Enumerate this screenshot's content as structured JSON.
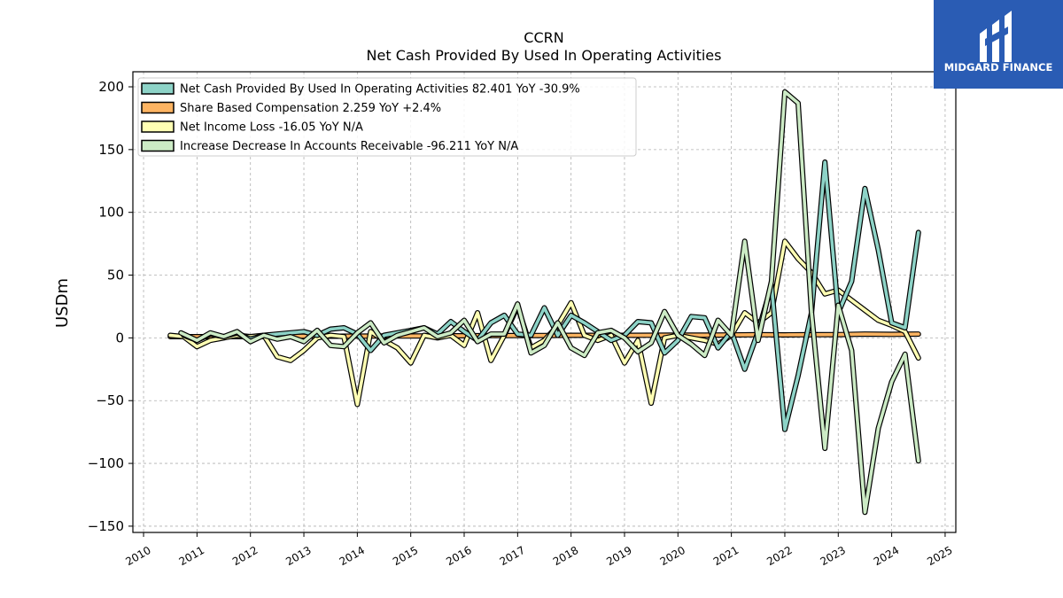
{
  "brand": {
    "name": "MIDGARD FINANCE",
    "bg_color": "#2a5cb4",
    "icon": "midgard-logo-icon"
  },
  "chart_data": {
    "type": "line",
    "title": "CCRN",
    "subtitle": "Net Cash Provided By Used In Operating Activities",
    "ylabel": "USDm",
    "xlabel": "",
    "xlim": [
      2009.8,
      2025.2
    ],
    "ylim": [
      -155,
      212
    ],
    "x_ticks": [
      2010,
      2011,
      2012,
      2013,
      2014,
      2015,
      2016,
      2017,
      2018,
      2019,
      2020,
      2021,
      2022,
      2023,
      2024,
      2025
    ],
    "y_ticks": [
      -150,
      -100,
      -50,
      0,
      50,
      100,
      150,
      200
    ],
    "y_tick_labels": [
      "−150",
      "−100",
      "−50",
      "0",
      "50",
      "100",
      "150",
      "200"
    ],
    "grid": true,
    "legend_position": "top-left",
    "series": [
      {
        "name": "Net Cash Provided By Used In Operating Activities",
        "legend": "Net Cash Provided By Used In Operating Activities  82.401 YoY -30.9%",
        "color": "#8dd3c7",
        "points": [
          [
            2010.75,
            2
          ],
          [
            2011.0,
            -2
          ],
          [
            2011.25,
            3
          ],
          [
            2011.5,
            1
          ],
          [
            2011.75,
            4
          ],
          [
            2012.0,
            -1
          ],
          [
            2012.25,
            2
          ],
          [
            2012.5,
            3
          ],
          [
            2012.75,
            4
          ],
          [
            2013.0,
            5
          ],
          [
            2013.25,
            2
          ],
          [
            2013.5,
            7
          ],
          [
            2013.75,
            8
          ],
          [
            2014.0,
            3
          ],
          [
            2014.25,
            -10
          ],
          [
            2014.5,
            2
          ],
          [
            2014.75,
            4
          ],
          [
            2015.0,
            6
          ],
          [
            2015.25,
            8
          ],
          [
            2015.5,
            3
          ],
          [
            2015.75,
            13
          ],
          [
            2016.0,
            5
          ],
          [
            2016.25,
            -2
          ],
          [
            2016.5,
            12
          ],
          [
            2016.75,
            18
          ],
          [
            2017.0,
            3
          ],
          [
            2017.25,
            2
          ],
          [
            2017.5,
            24
          ],
          [
            2017.75,
            2
          ],
          [
            2018.0,
            18
          ],
          [
            2018.25,
            12
          ],
          [
            2018.5,
            5
          ],
          [
            2018.75,
            -2
          ],
          [
            2019.0,
            2
          ],
          [
            2019.25,
            13
          ],
          [
            2019.5,
            12
          ],
          [
            2019.75,
            -12
          ],
          [
            2020.0,
            -2
          ],
          [
            2020.25,
            17
          ],
          [
            2020.5,
            16
          ],
          [
            2020.75,
            -8
          ],
          [
            2021.0,
            5
          ],
          [
            2021.25,
            -25
          ],
          [
            2021.5,
            5
          ],
          [
            2021.75,
            42
          ],
          [
            2022.0,
            -73
          ],
          [
            2022.25,
            -30
          ],
          [
            2022.5,
            20
          ],
          [
            2022.75,
            140
          ],
          [
            2023.0,
            20
          ],
          [
            2023.25,
            45
          ],
          [
            2023.5,
            119
          ],
          [
            2023.75,
            70
          ],
          [
            2024.0,
            12
          ],
          [
            2024.25,
            8
          ],
          [
            2024.5,
            84
          ]
        ]
      },
      {
        "name": "Share Based Compensation",
        "legend": "Share Based Compensation  2.259 YoY +2.4%",
        "color": "#fdb462",
        "points": [
          [
            2010.5,
            1
          ],
          [
            2011.0,
            1
          ],
          [
            2011.5,
            1
          ],
          [
            2012.0,
            1
          ],
          [
            2012.5,
            1.2
          ],
          [
            2013.0,
            1.3
          ],
          [
            2013.5,
            1.3
          ],
          [
            2014.0,
            1.4
          ],
          [
            2014.5,
            1.5
          ],
          [
            2015.0,
            1.5
          ],
          [
            2015.5,
            1.6
          ],
          [
            2016.0,
            1.7
          ],
          [
            2016.5,
            1.8
          ],
          [
            2017.0,
            1.8
          ],
          [
            2017.5,
            1.9
          ],
          [
            2018.0,
            2
          ],
          [
            2018.5,
            2
          ],
          [
            2019.0,
            2
          ],
          [
            2019.5,
            2.1
          ],
          [
            2020.0,
            2.2
          ],
          [
            2020.5,
            2.2
          ],
          [
            2021.0,
            2.3
          ],
          [
            2021.5,
            2.5
          ],
          [
            2022.0,
            2.4
          ],
          [
            2022.5,
            2.5
          ],
          [
            2023.0,
            2.6
          ],
          [
            2023.5,
            3
          ],
          [
            2024.0,
            2.8
          ],
          [
            2024.5,
            3
          ]
        ]
      },
      {
        "name": "Net Income Loss",
        "legend": "Net Income Loss  -16.05 YoY N/A",
        "color": "#ffffb3",
        "points": [
          [
            2010.5,
            2
          ],
          [
            2010.75,
            1
          ],
          [
            2011.0,
            -7
          ],
          [
            2011.25,
            -2
          ],
          [
            2011.5,
            0
          ],
          [
            2011.75,
            2
          ],
          [
            2012.0,
            1
          ],
          [
            2012.25,
            2
          ],
          [
            2012.5,
            -15
          ],
          [
            2012.75,
            -18
          ],
          [
            2013.0,
            -10
          ],
          [
            2013.25,
            0
          ],
          [
            2013.5,
            2
          ],
          [
            2013.75,
            1
          ],
          [
            2014.0,
            -53
          ],
          [
            2014.25,
            5
          ],
          [
            2014.5,
            -2
          ],
          [
            2014.75,
            -8
          ],
          [
            2015.0,
            -20
          ],
          [
            2015.25,
            2
          ],
          [
            2015.5,
            0
          ],
          [
            2015.75,
            2
          ],
          [
            2016.0,
            -6
          ],
          [
            2016.25,
            20
          ],
          [
            2016.5,
            -18
          ],
          [
            2016.75,
            2
          ],
          [
            2017.0,
            25
          ],
          [
            2017.25,
            -8
          ],
          [
            2017.5,
            -2
          ],
          [
            2017.75,
            10
          ],
          [
            2018.0,
            28
          ],
          [
            2018.25,
            2
          ],
          [
            2018.5,
            -2
          ],
          [
            2018.75,
            2
          ],
          [
            2019.0,
            -20
          ],
          [
            2019.25,
            -2
          ],
          [
            2019.5,
            -52
          ],
          [
            2019.75,
            0
          ],
          [
            2020.0,
            2
          ],
          [
            2020.25,
            0
          ],
          [
            2020.5,
            -2
          ],
          [
            2020.75,
            -5
          ],
          [
            2021.0,
            2
          ],
          [
            2021.25,
            20
          ],
          [
            2021.5,
            12
          ],
          [
            2021.75,
            20
          ],
          [
            2022.0,
            77
          ],
          [
            2022.25,
            63
          ],
          [
            2022.5,
            52
          ],
          [
            2022.75,
            35
          ],
          [
            2023.0,
            38
          ],
          [
            2023.25,
            30
          ],
          [
            2023.5,
            22
          ],
          [
            2023.75,
            14
          ],
          [
            2024.0,
            10
          ],
          [
            2024.25,
            5
          ],
          [
            2024.5,
            -16
          ]
        ]
      },
      {
        "name": "Increase Decrease In Accounts Receivable",
        "legend": "Increase Decrease In Accounts Receivable  -96.211 YoY N/A",
        "color": "#ccebc5",
        "points": [
          [
            2010.7,
            4
          ],
          [
            2011.0,
            -2
          ],
          [
            2011.25,
            4
          ],
          [
            2011.5,
            1
          ],
          [
            2011.75,
            5
          ],
          [
            2012.0,
            -3
          ],
          [
            2012.25,
            2
          ],
          [
            2012.5,
            -1
          ],
          [
            2012.75,
            1
          ],
          [
            2013.0,
            -3
          ],
          [
            2013.25,
            6
          ],
          [
            2013.5,
            -6
          ],
          [
            2013.75,
            -7
          ],
          [
            2014.0,
            4
          ],
          [
            2014.25,
            12
          ],
          [
            2014.5,
            -4
          ],
          [
            2014.75,
            2
          ],
          [
            2015.0,
            5
          ],
          [
            2015.25,
            8
          ],
          [
            2015.5,
            1
          ],
          [
            2015.75,
            4
          ],
          [
            2016.0,
            14
          ],
          [
            2016.25,
            -3
          ],
          [
            2016.5,
            3
          ],
          [
            2016.75,
            3
          ],
          [
            2017.0,
            27
          ],
          [
            2017.25,
            -12
          ],
          [
            2017.5,
            -6
          ],
          [
            2017.75,
            12
          ],
          [
            2018.0,
            -8
          ],
          [
            2018.25,
            -14
          ],
          [
            2018.5,
            4
          ],
          [
            2018.75,
            6
          ],
          [
            2019.0,
            0
          ],
          [
            2019.25,
            -11
          ],
          [
            2019.5,
            -4
          ],
          [
            2019.75,
            21
          ],
          [
            2020.0,
            2
          ],
          [
            2020.25,
            -5
          ],
          [
            2020.5,
            -14
          ],
          [
            2020.75,
            14
          ],
          [
            2021.0,
            2
          ],
          [
            2021.25,
            77
          ],
          [
            2021.5,
            -2
          ],
          [
            2021.75,
            45
          ],
          [
            2022.0,
            196
          ],
          [
            2022.25,
            187
          ],
          [
            2022.5,
            20
          ],
          [
            2022.75,
            -88
          ],
          [
            2023.0,
            26
          ],
          [
            2023.25,
            -10
          ],
          [
            2023.5,
            -139
          ],
          [
            2023.75,
            -72
          ],
          [
            2024.0,
            -35
          ],
          [
            2024.25,
            -13
          ],
          [
            2024.5,
            -98
          ]
        ]
      }
    ]
  }
}
